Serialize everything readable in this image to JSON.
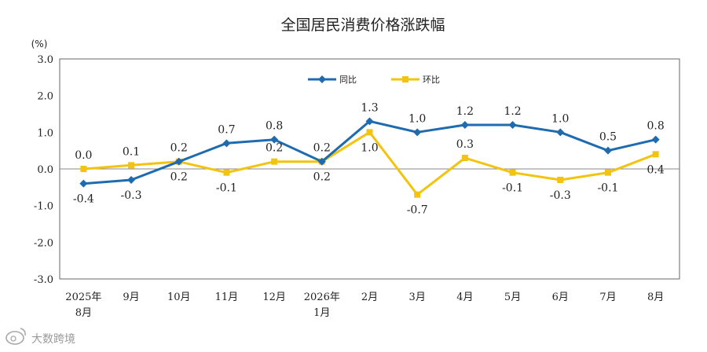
{
  "chart_data": {
    "type": "line",
    "title": "全国居民消费价格涨跌幅",
    "ylabel": "(%)",
    "ylim": [
      -3.0,
      3.0
    ],
    "yticks": [
      "3.0",
      "2.0",
      "1.0",
      "0.0",
      "-1.0",
      "-2.0",
      "-3.0"
    ],
    "categories": [
      [
        "2025年",
        "8月"
      ],
      [
        "9月"
      ],
      [
        "10月"
      ],
      [
        "11月"
      ],
      [
        "12月"
      ],
      [
        "2026年",
        "1月"
      ],
      [
        "2月"
      ],
      [
        "3月"
      ],
      [
        "4月"
      ],
      [
        "5月"
      ],
      [
        "6月"
      ],
      [
        "7月"
      ],
      [
        "8月"
      ]
    ],
    "legend_position": "top-center",
    "grid": false,
    "series": [
      {
        "name": "同比",
        "color": "#1f6bb0",
        "marker": "diamond",
        "values": [
          -0.4,
          -0.3,
          0.2,
          0.7,
          0.8,
          0.2,
          1.3,
          1.0,
          1.2,
          1.2,
          1.0,
          0.5,
          0.8
        ],
        "labels": [
          "-0.4",
          "-0.3",
          "0.2",
          "0.7",
          "0.8",
          "0.2",
          "1.3",
          "1.0",
          "1.2",
          "1.2",
          "1.0",
          "0.5",
          "0.8"
        ]
      },
      {
        "name": "环比",
        "color": "#f2c40f",
        "marker": "square",
        "values": [
          0.0,
          0.1,
          0.2,
          -0.1,
          0.2,
          0.2,
          1.0,
          -0.7,
          0.3,
          -0.1,
          -0.3,
          -0.1,
          0.4
        ],
        "labels": [
          "0.0",
          "0.1",
          "0.2",
          "-0.1",
          "0.2",
          "0.2",
          "1.0",
          "-0.7",
          "0.3",
          "-0.1",
          "-0.3",
          "-0.1",
          "0.4"
        ]
      }
    ]
  },
  "watermark": {
    "text": "大数跨境",
    "icon": "weibo-style-logo-icon"
  }
}
